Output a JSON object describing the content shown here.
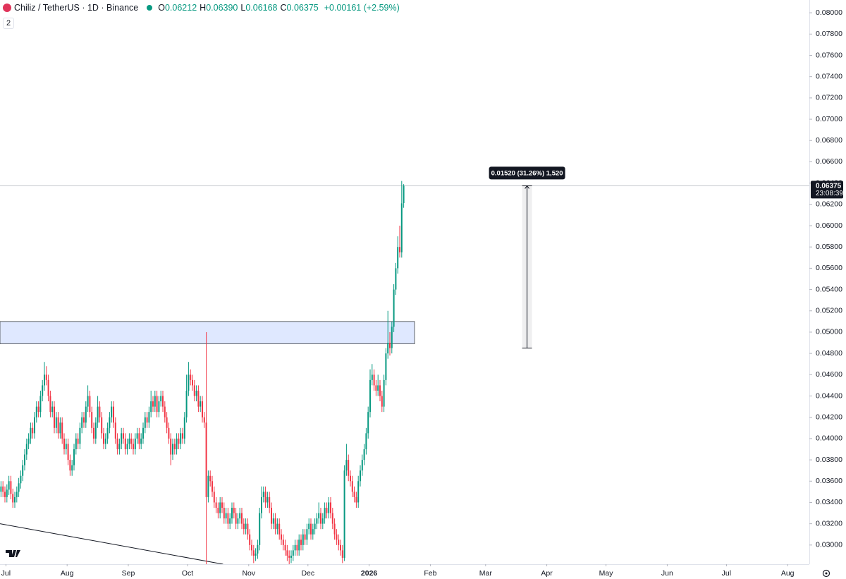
{
  "chart_data": {
    "type": "candlestick",
    "header": {
      "symbol": "Chiliz / TetherUS · 1D · Binance",
      "ohlc": [
        {
          "label": "O",
          "value": "0.06212"
        },
        {
          "label": "H",
          "value": "0.06390"
        },
        {
          "label": "L",
          "value": "0.06168"
        },
        {
          "label": "C",
          "value": "0.06375"
        }
      ],
      "change": "+0.00161 (+2.59%)",
      "indicators": "2"
    },
    "up_color": "#089981",
    "down_color": "#f23645",
    "xlim": [
      0,
      410
    ],
    "ylim": [
      0.0282,
      0.0812
    ],
    "xticks": [
      {
        "value": 3,
        "label": "Jul"
      },
      {
        "value": 34,
        "label": "Aug"
      },
      {
        "value": 65,
        "label": "Sep"
      },
      {
        "value": 95,
        "label": "Oct"
      },
      {
        "value": 126,
        "label": "Nov"
      },
      {
        "value": 156,
        "label": "Dec"
      },
      {
        "value": 187,
        "label": "2026"
      },
      {
        "value": 218,
        "label": "Feb"
      },
      {
        "value": 246,
        "label": "Mar"
      },
      {
        "value": 277,
        "label": "Apr"
      },
      {
        "value": 307,
        "label": "May"
      },
      {
        "value": 338,
        "label": "Jun"
      },
      {
        "value": 368,
        "label": "Jul"
      },
      {
        "value": 399,
        "label": "Aug"
      }
    ],
    "yticks": [
      {
        "value": 0.03,
        "label": "0.03000"
      },
      {
        "value": 0.032,
        "label": "0.03200"
      },
      {
        "value": 0.034,
        "label": "0.03400"
      },
      {
        "value": 0.036,
        "label": "0.03600"
      },
      {
        "value": 0.038,
        "label": "0.03800"
      },
      {
        "value": 0.04,
        "label": "0.04000"
      },
      {
        "value": 0.042,
        "label": "0.04200"
      },
      {
        "value": 0.044,
        "label": "0.04400"
      },
      {
        "value": 0.046,
        "label": "0.04600"
      },
      {
        "value": 0.048,
        "label": "0.04800"
      },
      {
        "value": 0.05,
        "label": "0.05000"
      },
      {
        "value": 0.052,
        "label": "0.05200"
      },
      {
        "value": 0.054,
        "label": "0.05400"
      },
      {
        "value": 0.056,
        "label": "0.05600"
      },
      {
        "value": 0.058,
        "label": "0.05800"
      },
      {
        "value": 0.06,
        "label": "0.06000"
      },
      {
        "value": 0.062,
        "label": "0.06200"
      },
      {
        "value": 0.064,
        "label": "0.06400"
      },
      {
        "value": 0.066,
        "label": "0.06600"
      },
      {
        "value": 0.068,
        "label": "0.06800"
      },
      {
        "value": 0.07,
        "label": "0.07000"
      },
      {
        "value": 0.072,
        "label": "0.07200"
      },
      {
        "value": 0.074,
        "label": "0.07400"
      },
      {
        "value": 0.076,
        "label": "0.07600"
      },
      {
        "value": 0.078,
        "label": "0.07800"
      },
      {
        "value": 0.08,
        "label": "0.08000"
      }
    ],
    "last_price": 0.06375,
    "last_price_label": "0.06375",
    "countdown": "23:08:39",
    "zone": {
      "x": [
        0,
        210
      ],
      "y": [
        0.0489,
        0.051
      ]
    },
    "trendline": {
      "x": [
        0,
        113
      ],
      "y": [
        0.032,
        0.0282
      ]
    },
    "measure": {
      "x": 267,
      "y": [
        0.0485,
        0.06375
      ],
      "label": "0.01520 (31.26%) 1,520"
    },
    "ohlc": [
      [
        0.035,
        0.036,
        0.0345,
        0.0355
      ],
      [
        0.0355,
        0.036,
        0.0345,
        0.035
      ],
      [
        0.035,
        0.0355,
        0.034,
        0.0345
      ],
      [
        0.0345,
        0.0357,
        0.034,
        0.0352
      ],
      [
        0.0352,
        0.0365,
        0.0347,
        0.036
      ],
      [
        0.036,
        0.0365,
        0.0343,
        0.0348
      ],
      [
        0.0348,
        0.0353,
        0.0335,
        0.034
      ],
      [
        0.034,
        0.035,
        0.0335,
        0.0345
      ],
      [
        0.0345,
        0.0355,
        0.034,
        0.035
      ],
      [
        0.035,
        0.0363,
        0.0345,
        0.0358
      ],
      [
        0.0358,
        0.037,
        0.0353,
        0.0365
      ],
      [
        0.0365,
        0.038,
        0.036,
        0.0375
      ],
      [
        0.0375,
        0.039,
        0.037,
        0.0385
      ],
      [
        0.0385,
        0.04,
        0.038,
        0.0395
      ],
      [
        0.0395,
        0.0405,
        0.039,
        0.04
      ],
      [
        0.04,
        0.0415,
        0.0395,
        0.041
      ],
      [
        0.041,
        0.0415,
        0.04,
        0.0405
      ],
      [
        0.0405,
        0.0425,
        0.04,
        0.042
      ],
      [
        0.042,
        0.0435,
        0.0415,
        0.043
      ],
      [
        0.043,
        0.0435,
        0.042,
        0.0425
      ],
      [
        0.0425,
        0.0445,
        0.042,
        0.044
      ],
      [
        0.044,
        0.0455,
        0.0435,
        0.045
      ],
      [
        0.045,
        0.0472,
        0.0445,
        0.046
      ],
      [
        0.046,
        0.0468,
        0.045,
        0.0455
      ],
      [
        0.0455,
        0.046,
        0.0435,
        0.044
      ],
      [
        0.044,
        0.0445,
        0.042,
        0.0425
      ],
      [
        0.0425,
        0.0435,
        0.042,
        0.043
      ],
      [
        0.043,
        0.0435,
        0.0405,
        0.041
      ],
      [
        0.041,
        0.0425,
        0.0405,
        0.042
      ],
      [
        0.042,
        0.0425,
        0.04,
        0.0405
      ],
      [
        0.0405,
        0.042,
        0.04,
        0.0415
      ],
      [
        0.0415,
        0.042,
        0.0395,
        0.04
      ],
      [
        0.04,
        0.0405,
        0.0385,
        0.039
      ],
      [
        0.039,
        0.04,
        0.0385,
        0.0395
      ],
      [
        0.0395,
        0.04,
        0.0375,
        0.038
      ],
      [
        0.038,
        0.0385,
        0.0365,
        0.037
      ],
      [
        0.037,
        0.038,
        0.0365,
        0.0375
      ],
      [
        0.0375,
        0.0395,
        0.037,
        0.039
      ],
      [
        0.039,
        0.0405,
        0.0385,
        0.04
      ],
      [
        0.04,
        0.0405,
        0.039,
        0.0395
      ],
      [
        0.0395,
        0.0415,
        0.039,
        0.041
      ],
      [
        0.041,
        0.0425,
        0.0405,
        0.042
      ],
      [
        0.042,
        0.0425,
        0.041,
        0.0415
      ],
      [
        0.0415,
        0.0435,
        0.041,
        0.043
      ],
      [
        0.043,
        0.045,
        0.0425,
        0.044
      ],
      [
        0.044,
        0.0445,
        0.042,
        0.0425
      ],
      [
        0.0425,
        0.043,
        0.0405,
        0.041
      ],
      [
        0.041,
        0.0415,
        0.0395,
        0.04
      ],
      [
        0.04,
        0.042,
        0.0395,
        0.0415
      ],
      [
        0.0415,
        0.044,
        0.041,
        0.043
      ],
      [
        0.043,
        0.0435,
        0.0415,
        0.042
      ],
      [
        0.042,
        0.0425,
        0.04,
        0.0405
      ],
      [
        0.0405,
        0.041,
        0.039,
        0.0395
      ],
      [
        0.0395,
        0.0405,
        0.039,
        0.04
      ],
      [
        0.04,
        0.0415,
        0.0395,
        0.041
      ],
      [
        0.041,
        0.0425,
        0.0405,
        0.042
      ],
      [
        0.042,
        0.0435,
        0.0415,
        0.043
      ],
      [
        0.043,
        0.0435,
        0.041,
        0.0415
      ],
      [
        0.0415,
        0.042,
        0.0395,
        0.04
      ],
      [
        0.04,
        0.0405,
        0.0385,
        0.039
      ],
      [
        0.039,
        0.04,
        0.0385,
        0.0395
      ],
      [
        0.0395,
        0.041,
        0.039,
        0.0405
      ],
      [
        0.0405,
        0.041,
        0.0395,
        0.04
      ],
      [
        0.04,
        0.0405,
        0.0385,
        0.039
      ],
      [
        0.039,
        0.04,
        0.0385,
        0.0395
      ],
      [
        0.0395,
        0.0405,
        0.039,
        0.04
      ],
      [
        0.04,
        0.0405,
        0.039,
        0.0395
      ],
      [
        0.0395,
        0.04,
        0.0385,
        0.039
      ],
      [
        0.039,
        0.0405,
        0.0385,
        0.04
      ],
      [
        0.04,
        0.041,
        0.0395,
        0.0405
      ],
      [
        0.0405,
        0.041,
        0.039,
        0.0395
      ],
      [
        0.0395,
        0.0405,
        0.039,
        0.04
      ],
      [
        0.04,
        0.0415,
        0.0395,
        0.041
      ],
      [
        0.041,
        0.0425,
        0.0405,
        0.042
      ],
      [
        0.042,
        0.0425,
        0.041,
        0.0415
      ],
      [
        0.0415,
        0.043,
        0.041,
        0.0425
      ],
      [
        0.0425,
        0.0445,
        0.042,
        0.0435
      ],
      [
        0.0435,
        0.044,
        0.0425,
        0.043
      ],
      [
        0.043,
        0.0445,
        0.0425,
        0.044
      ],
      [
        0.044,
        0.0445,
        0.042,
        0.0425
      ],
      [
        0.0425,
        0.044,
        0.042,
        0.0435
      ],
      [
        0.0435,
        0.0445,
        0.043,
        0.044
      ],
      [
        0.044,
        0.0445,
        0.0425,
        0.043
      ],
      [
        0.043,
        0.0435,
        0.0415,
        0.042
      ],
      [
        0.042,
        0.0425,
        0.0405,
        0.041
      ],
      [
        0.041,
        0.0415,
        0.0395,
        0.04
      ],
      [
        0.04,
        0.0405,
        0.0375,
        0.0385
      ],
      [
        0.0385,
        0.04,
        0.038,
        0.0395
      ],
      [
        0.0395,
        0.04,
        0.0385,
        0.039
      ],
      [
        0.039,
        0.0405,
        0.0385,
        0.04
      ],
      [
        0.04,
        0.0405,
        0.039,
        0.0395
      ],
      [
        0.0395,
        0.041,
        0.039,
        0.0405
      ],
      [
        0.0405,
        0.041,
        0.0395,
        0.04
      ],
      [
        0.04,
        0.0425,
        0.0395,
        0.042
      ],
      [
        0.042,
        0.046,
        0.0415,
        0.0445
      ],
      [
        0.0445,
        0.0472,
        0.044,
        0.046
      ],
      [
        0.046,
        0.0465,
        0.045,
        0.0455
      ],
      [
        0.0455,
        0.046,
        0.0445,
        0.045
      ],
      [
        0.045,
        0.0455,
        0.0435,
        0.044
      ],
      [
        0.044,
        0.045,
        0.0435,
        0.0445
      ],
      [
        0.0445,
        0.045,
        0.0425,
        0.043
      ],
      [
        0.043,
        0.044,
        0.0425,
        0.0435
      ],
      [
        0.0435,
        0.044,
        0.0415,
        0.042
      ],
      [
        0.042,
        0.0425,
        0.041,
        0.0415
      ],
      [
        0.0415,
        0.05,
        0.0282,
        0.0345
      ],
      [
        0.0345,
        0.037,
        0.034,
        0.0365
      ],
      [
        0.0365,
        0.037,
        0.0355,
        0.036
      ],
      [
        0.036,
        0.0365,
        0.0345,
        0.035
      ],
      [
        0.035,
        0.0355,
        0.0335,
        0.034
      ],
      [
        0.034,
        0.0345,
        0.033,
        0.0335
      ],
      [
        0.0335,
        0.034,
        0.0325,
        0.033
      ],
      [
        0.033,
        0.0345,
        0.0325,
        0.034
      ],
      [
        0.034,
        0.0345,
        0.033,
        0.0335
      ],
      [
        0.0335,
        0.034,
        0.032,
        0.0325
      ],
      [
        0.0325,
        0.0335,
        0.032,
        0.033
      ],
      [
        0.033,
        0.0335,
        0.0315,
        0.032
      ],
      [
        0.032,
        0.033,
        0.0315,
        0.0325
      ],
      [
        0.0325,
        0.034,
        0.032,
        0.0335
      ],
      [
        0.0335,
        0.034,
        0.0325,
        0.033
      ],
      [
        0.033,
        0.0335,
        0.0315,
        0.032
      ],
      [
        0.032,
        0.033,
        0.0315,
        0.0325
      ],
      [
        0.0325,
        0.0335,
        0.032,
        0.033
      ],
      [
        0.033,
        0.0335,
        0.0315,
        0.032
      ],
      [
        0.032,
        0.0325,
        0.031,
        0.0315
      ],
      [
        0.0315,
        0.0325,
        0.031,
        0.032
      ],
      [
        0.032,
        0.0325,
        0.0305,
        0.031
      ],
      [
        0.031,
        0.0315,
        0.0295,
        0.03
      ],
      [
        0.03,
        0.0305,
        0.029,
        0.0295
      ],
      [
        0.0295,
        0.03,
        0.0283,
        0.029
      ],
      [
        0.029,
        0.0297,
        0.0285,
        0.0292
      ],
      [
        0.0292,
        0.0305,
        0.0287,
        0.03
      ],
      [
        0.03,
        0.0335,
        0.0295,
        0.033
      ],
      [
        0.033,
        0.0355,
        0.0325,
        0.0345
      ],
      [
        0.0345,
        0.0355,
        0.034,
        0.035
      ],
      [
        0.035,
        0.0355,
        0.0335,
        0.034
      ],
      [
        0.034,
        0.035,
        0.0335,
        0.0345
      ],
      [
        0.0345,
        0.035,
        0.033,
        0.0335
      ],
      [
        0.0335,
        0.034,
        0.0315,
        0.032
      ],
      [
        0.032,
        0.033,
        0.0315,
        0.0325
      ],
      [
        0.0325,
        0.033,
        0.031,
        0.0315
      ],
      [
        0.0315,
        0.0325,
        0.031,
        0.032
      ],
      [
        0.032,
        0.0325,
        0.0305,
        0.031
      ],
      [
        0.031,
        0.0315,
        0.03,
        0.0305
      ],
      [
        0.0305,
        0.031,
        0.0295,
        0.03
      ],
      [
        0.03,
        0.0305,
        0.029,
        0.0295
      ],
      [
        0.0295,
        0.03,
        0.0285,
        0.029
      ],
      [
        0.029,
        0.0295,
        0.0282,
        0.0288
      ],
      [
        0.0288,
        0.0295,
        0.0283,
        0.029
      ],
      [
        0.029,
        0.03,
        0.0285,
        0.0295
      ],
      [
        0.0295,
        0.0305,
        0.029,
        0.03
      ],
      [
        0.03,
        0.0305,
        0.029,
        0.0295
      ],
      [
        0.0295,
        0.031,
        0.029,
        0.0305
      ],
      [
        0.0305,
        0.031,
        0.0295,
        0.03
      ],
      [
        0.03,
        0.0315,
        0.0295,
        0.031
      ],
      [
        0.031,
        0.0315,
        0.03,
        0.0305
      ],
      [
        0.0305,
        0.032,
        0.03,
        0.0315
      ],
      [
        0.0315,
        0.0325,
        0.031,
        0.032
      ],
      [
        0.032,
        0.0325,
        0.0305,
        0.031
      ],
      [
        0.031,
        0.032,
        0.0305,
        0.0315
      ],
      [
        0.0315,
        0.0325,
        0.031,
        0.032
      ],
      [
        0.032,
        0.033,
        0.0315,
        0.0325
      ],
      [
        0.0325,
        0.034,
        0.032,
        0.033
      ],
      [
        0.033,
        0.0335,
        0.0315,
        0.032
      ],
      [
        0.032,
        0.033,
        0.0315,
        0.0325
      ],
      [
        0.0325,
        0.034,
        0.032,
        0.0335
      ],
      [
        0.0335,
        0.034,
        0.0325,
        0.033
      ],
      [
        0.033,
        0.0345,
        0.0325,
        0.034
      ],
      [
        0.034,
        0.0345,
        0.0325,
        0.033
      ],
      [
        0.033,
        0.0335,
        0.0315,
        0.032
      ],
      [
        0.032,
        0.0325,
        0.0305,
        0.031
      ],
      [
        0.031,
        0.0315,
        0.03,
        0.0305
      ],
      [
        0.0305,
        0.031,
        0.0295,
        0.03
      ],
      [
        0.03,
        0.0305,
        0.029,
        0.0295
      ],
      [
        0.0295,
        0.03,
        0.0283,
        0.0288
      ],
      [
        0.0288,
        0.0375,
        0.0285,
        0.037
      ],
      [
        0.037,
        0.0395,
        0.0365,
        0.038
      ],
      [
        0.038,
        0.0385,
        0.036,
        0.0365
      ],
      [
        0.0365,
        0.037,
        0.0355,
        0.036
      ],
      [
        0.036,
        0.0365,
        0.0345,
        0.035
      ],
      [
        0.035,
        0.0355,
        0.034,
        0.0345
      ],
      [
        0.0345,
        0.035,
        0.0335,
        0.034
      ],
      [
        0.034,
        0.0365,
        0.0335,
        0.036
      ],
      [
        0.036,
        0.0375,
        0.0355,
        0.037
      ],
      [
        0.037,
        0.0385,
        0.0365,
        0.038
      ],
      [
        0.038,
        0.0395,
        0.0375,
        0.039
      ],
      [
        0.039,
        0.041,
        0.0385,
        0.0405
      ],
      [
        0.0405,
        0.043,
        0.04,
        0.0425
      ],
      [
        0.0425,
        0.0465,
        0.042,
        0.0455
      ],
      [
        0.0455,
        0.047,
        0.045,
        0.046
      ],
      [
        0.046,
        0.0465,
        0.0445,
        0.045
      ],
      [
        0.045,
        0.0455,
        0.044,
        0.0445
      ],
      [
        0.0445,
        0.046,
        0.044,
        0.045
      ],
      [
        0.045,
        0.0455,
        0.0435,
        0.044
      ],
      [
        0.044,
        0.0445,
        0.0425,
        0.043
      ],
      [
        0.043,
        0.046,
        0.0425,
        0.0455
      ],
      [
        0.0455,
        0.0485,
        0.045,
        0.048
      ],
      [
        0.048,
        0.052,
        0.0475,
        0.049
      ],
      [
        0.049,
        0.05,
        0.0478,
        0.0485
      ],
      [
        0.0485,
        0.051,
        0.048,
        0.0505
      ],
      [
        0.0505,
        0.0545,
        0.05,
        0.054
      ],
      [
        0.054,
        0.0565,
        0.0535,
        0.056
      ],
      [
        0.056,
        0.059,
        0.0555,
        0.058
      ],
      [
        0.058,
        0.06,
        0.057,
        0.0575
      ],
      [
        0.0575,
        0.0642,
        0.057,
        0.0621
      ],
      [
        0.06212,
        0.0639,
        0.06168,
        0.06375
      ]
    ]
  }
}
